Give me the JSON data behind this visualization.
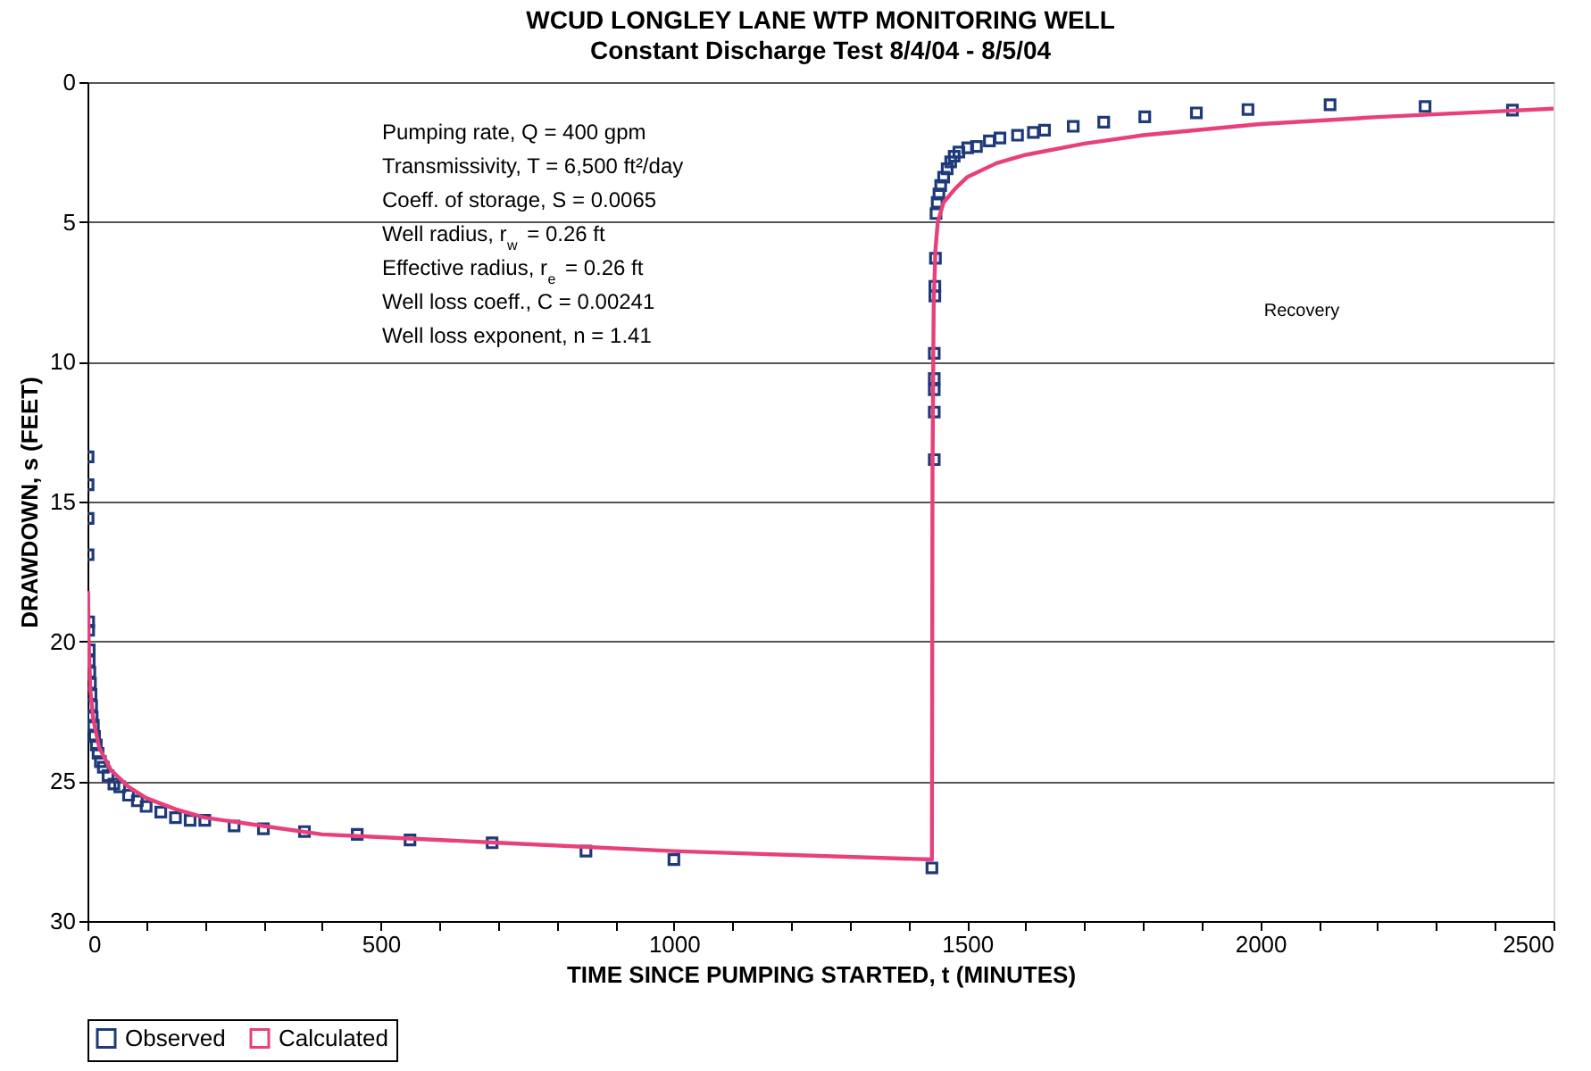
{
  "chart_data": {
    "type": "scatter",
    "title": "WCUD LONGLEY LANE WTP MONITORING WELL",
    "subtitle": "Constant Discharge Test 8/4/04 - 8/5/04",
    "xlabel": "TIME SINCE PUMPING STARTED, t (MINUTES)",
    "ylabel": "DRAWDOWN, s (FEET)",
    "xlim": [
      0,
      2500
    ],
    "ylim": [
      30,
      0
    ],
    "xticks": [
      0,
      {
        "value": 100,
        "label": null
      },
      {
        "value": 200,
        "label": null
      },
      {
        "value": 300,
        "label": null
      },
      {
        "value": 400,
        "label": null
      },
      500,
      {
        "value": 600,
        "label": null
      },
      {
        "value": 700,
        "label": null
      },
      {
        "value": 800,
        "label": null
      },
      {
        "value": 900,
        "label": null
      },
      1000,
      {
        "value": 1100,
        "label": null
      },
      {
        "value": 1200,
        "label": null
      },
      {
        "value": 1300,
        "label": null
      },
      {
        "value": 1400,
        "label": null
      },
      1500,
      {
        "value": 1600,
        "label": null
      },
      {
        "value": 1700,
        "label": null
      },
      {
        "value": 1800,
        "label": null
      },
      {
        "value": 1900,
        "label": null
      },
      2000,
      {
        "value": 2100,
        "label": null
      },
      {
        "value": 2200,
        "label": null
      },
      {
        "value": 2300,
        "label": null
      },
      {
        "value": 2400,
        "label": null
      },
      2500
    ],
    "yticks": [
      0,
      5,
      10,
      15,
      20,
      25,
      30
    ],
    "grid": "y",
    "legend": "bottom",
    "annotations": [
      "Pumping rate, Q = 400 gpm",
      "Transmissivity, T = 6,500 ft²/day",
      "Coeff. of storage, S = 0.0065",
      "Well radius, r$_{w}$ = 0.26 ft",
      "Effective radius, r$_{e}$ = 0.26 ft",
      "Well loss coeff., C = 0.00241",
      "Well loss exponent, n = 1.41",
      "Recovery"
    ],
    "series": [
      {
        "name": "Observed",
        "marker": "square",
        "color": "#1f3a7a",
        "x": [
          1,
          1,
          1,
          1,
          2,
          2,
          3,
          3,
          4,
          5,
          6,
          7,
          8,
          10,
          12,
          15,
          18,
          22,
          27,
          35,
          45,
          55,
          70,
          85,
          100,
          125,
          150,
          175,
          200,
          250,
          300,
          370,
          460,
          550,
          690,
          850,
          1000,
          1440,
          1444,
          1444,
          1444,
          1444,
          1444,
          1445,
          1445,
          1446,
          1447,
          1449,
          1452,
          1455,
          1460,
          1466,
          1472,
          1478,
          1486,
          1501,
          1516,
          1538,
          1556,
          1586,
          1613,
          1632,
          1681,
          1733,
          1803,
          1891,
          1979,
          2119,
          2281,
          2430
        ],
        "values": [
          13.4,
          14.4,
          15.6,
          16.9,
          19.3,
          19.6,
          20.3,
          20.7,
          21.1,
          21.5,
          21.9,
          22.3,
          22.7,
          23.0,
          23.4,
          23.7,
          24.0,
          24.3,
          24.5,
          24.8,
          25.1,
          25.2,
          25.5,
          25.7,
          25.9,
          26.1,
          26.3,
          26.4,
          26.4,
          26.6,
          26.7,
          26.8,
          26.9,
          27.1,
          27.2,
          27.5,
          27.8,
          28.1,
          13.5,
          11.8,
          11.0,
          10.6,
          9.7,
          7.65,
          7.3,
          6.3,
          4.7,
          4.3,
          4.0,
          3.7,
          3.4,
          3.1,
          2.85,
          2.65,
          2.5,
          2.35,
          2.3,
          2.1,
          2.0,
          1.9,
          1.8,
          1.72,
          1.58,
          1.43,
          1.24,
          1.1,
          0.98,
          0.81,
          0.87,
          1.0
        ]
      },
      {
        "name": "Calculated",
        "type": "line",
        "line_style": "solid",
        "color": "#e8407a",
        "x": [
          1,
          2,
          5,
          10,
          20,
          40,
          70,
          100,
          150,
          200,
          300,
          400,
          500,
          700,
          1000,
          1440,
          1441,
          1443,
          1446,
          1450,
          1460,
          1480,
          1500,
          1550,
          1600,
          1700,
          1800,
          1900,
          2000,
          2200,
          2400,
          2500
        ],
        "values": [
          18.2,
          20.0,
          21.8,
          22.8,
          23.8,
          24.6,
          25.2,
          25.6,
          26.0,
          26.3,
          26.6,
          26.9,
          27.0,
          27.2,
          27.5,
          27.8,
          14.0,
          8.0,
          6.0,
          5.0,
          4.3,
          3.8,
          3.4,
          2.9,
          2.6,
          2.2,
          1.9,
          1.7,
          1.5,
          1.25,
          1.05,
          0.95
        ]
      }
    ]
  }
}
